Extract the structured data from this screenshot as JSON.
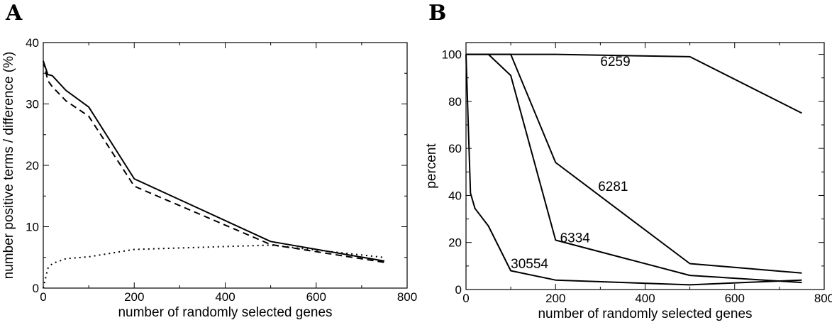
{
  "chart_data": [
    {
      "panel_label": "A",
      "type": "line",
      "title": "",
      "xlabel": "number of randomly selected genes",
      "ylabel": "number positive terms / difference (%)",
      "xlim": [
        0,
        800
      ],
      "ylim": [
        0,
        40
      ],
      "x_ticks": [
        0,
        200,
        400,
        600,
        800
      ],
      "y_ticks": [
        0,
        10,
        20,
        30,
        40
      ],
      "grid": false,
      "legend": "none",
      "series": [
        {
          "style": "solid",
          "x": [
            0,
            10,
            20,
            50,
            100,
            200,
            500,
            750
          ],
          "y": [
            37,
            34.8,
            34.6,
            32.2,
            29.5,
            17.8,
            7.6,
            4.4
          ]
        },
        {
          "style": "dashed",
          "x": [
            0,
            10,
            20,
            50,
            100,
            200,
            500,
            750
          ],
          "y": [
            37,
            33.8,
            32.8,
            30.5,
            28,
            16.6,
            7.1,
            4.2
          ]
        },
        {
          "style": "dotted",
          "x": [
            0,
            10,
            20,
            50,
            100,
            200,
            500,
            750
          ],
          "y": [
            0,
            3.2,
            4,
            4.8,
            5.1,
            6.3,
            7.0,
            5.0
          ]
        }
      ]
    },
    {
      "panel_label": "B",
      "type": "line",
      "title": "",
      "xlabel": "number of randomly selected genes",
      "ylabel": "percent",
      "xlim": [
        0,
        800
      ],
      "ylim": [
        0,
        105
      ],
      "x_ticks": [
        0,
        200,
        400,
        600,
        800
      ],
      "y_ticks": [
        0,
        20,
        40,
        60,
        80,
        100
      ],
      "grid": false,
      "legend": "none",
      "series": [
        {
          "style": "solid",
          "x": [
            0,
            10,
            20,
            50,
            100,
            200,
            500,
            750
          ],
          "y": [
            100,
            100,
            100,
            100,
            100,
            100,
            99,
            75
          ],
          "label": "6259",
          "label_at": [
            300,
            95
          ]
        },
        {
          "style": "solid",
          "x": [
            0,
            10,
            20,
            50,
            100,
            200,
            500,
            750
          ],
          "y": [
            100,
            100,
            100,
            100,
            100,
            54,
            11,
            7
          ],
          "label": "6281",
          "label_at": [
            295,
            42
          ]
        },
        {
          "style": "solid",
          "x": [
            0,
            10,
            20,
            50,
            100,
            200,
            500,
            750
          ],
          "y": [
            100,
            100,
            100,
            100,
            91,
            21,
            6,
            3
          ],
          "label": "6334",
          "label_at": [
            210,
            20
          ]
        },
        {
          "style": "solid",
          "x": [
            0,
            10,
            20,
            50,
            100,
            200,
            500,
            750
          ],
          "y": [
            100,
            41,
            34.5,
            27,
            8,
            4,
            2,
            4
          ],
          "label": "30554",
          "label_at": [
            100,
            9
          ]
        }
      ]
    }
  ]
}
